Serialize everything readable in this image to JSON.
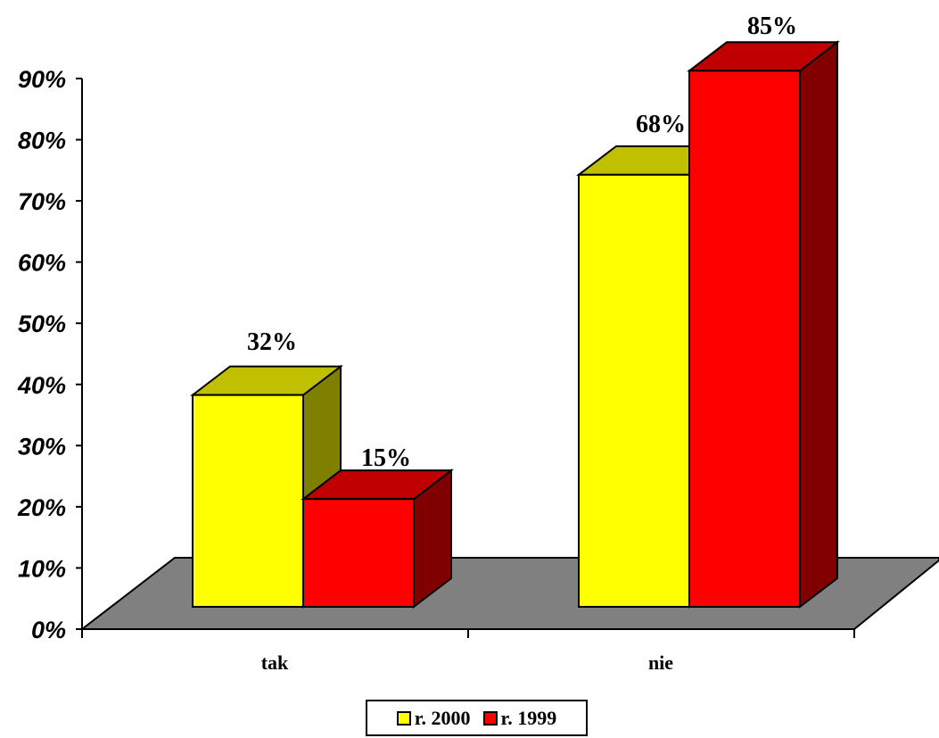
{
  "chart_data": {
    "type": "bar",
    "title": "",
    "xlabel": "",
    "ylabel": "",
    "categories": [
      "tak",
      "nie"
    ],
    "series": [
      {
        "name": "r. 2000",
        "values": [
          32,
          68
        ],
        "labels": [
          "32%",
          "68%"
        ],
        "color": "#ffff00",
        "top_color": "#c0c000",
        "side_color": "#808000"
      },
      {
        "name": "r. 1999",
        "values": [
          15,
          85
        ],
        "labels": [
          "15%",
          "85%"
        ],
        "color": "#ff0000",
        "top_color": "#c00000",
        "side_color": "#800000"
      }
    ],
    "ylim": [
      0,
      90
    ],
    "yticks": [
      "0%",
      "10%",
      "20%",
      "30%",
      "40%",
      "50%",
      "60%",
      "70%",
      "80%",
      "90%"
    ],
    "floor_color": "#808080",
    "grid": false,
    "legend_position": "bottom"
  }
}
